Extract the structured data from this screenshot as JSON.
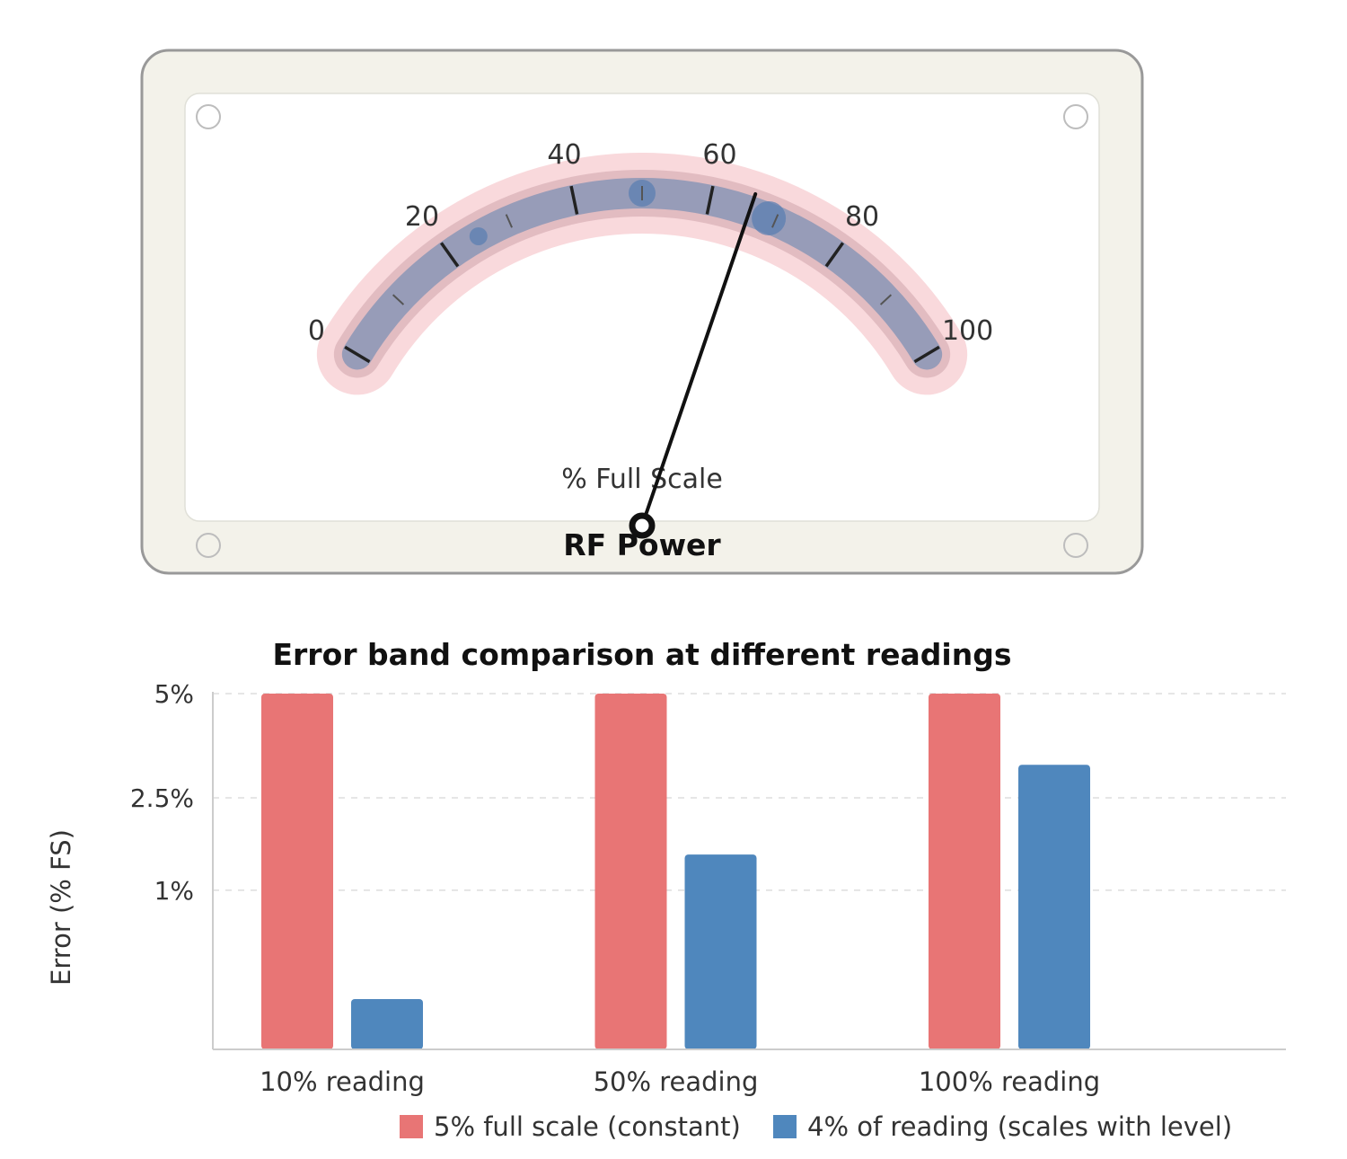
{
  "gauge": {
    "title": "RF Power",
    "unit_label": "% Full Scale",
    "value": 66,
    "scale_min": 0,
    "scale_max": 100,
    "major_ticks": [
      0,
      20,
      40,
      60,
      80,
      100
    ],
    "tick_labels": [
      "0",
      "20",
      "40",
      "60",
      "80",
      "100"
    ],
    "minor_ticks": [
      10,
      30,
      50,
      70,
      90
    ],
    "markers": [
      25,
      50,
      69
    ],
    "colors": {
      "bezel": "#f3f2ea",
      "face": "#ffffff",
      "outer_band": "#f9d9dc",
      "error_band": "#d9b2b8",
      "inner_band": "#8f98b7",
      "marker": "#5b7fb2",
      "needle": "#111111"
    }
  },
  "chart_data": {
    "type": "bar",
    "title": "Error band comparison at different readings",
    "xlabel": "",
    "ylabel": "Error (% FS)",
    "categories": [
      "10% reading",
      "50% reading",
      "100% reading"
    ],
    "y_scale": "sqrt",
    "y_ticks": [
      1,
      2.5,
      5
    ],
    "y_tick_labels": [
      "1%",
      "2.5%",
      "5%"
    ],
    "ylim": [
      0,
      5
    ],
    "grid": true,
    "legend_position": "bottom",
    "series": [
      {
        "name": "5% full scale (constant)",
        "color": "#e87575",
        "values": [
          5,
          5,
          5
        ]
      },
      {
        "name": "4% of reading (scales with level)",
        "color": "#4f87bd",
        "values": [
          0.1,
          1.5,
          3.2
        ]
      }
    ]
  }
}
